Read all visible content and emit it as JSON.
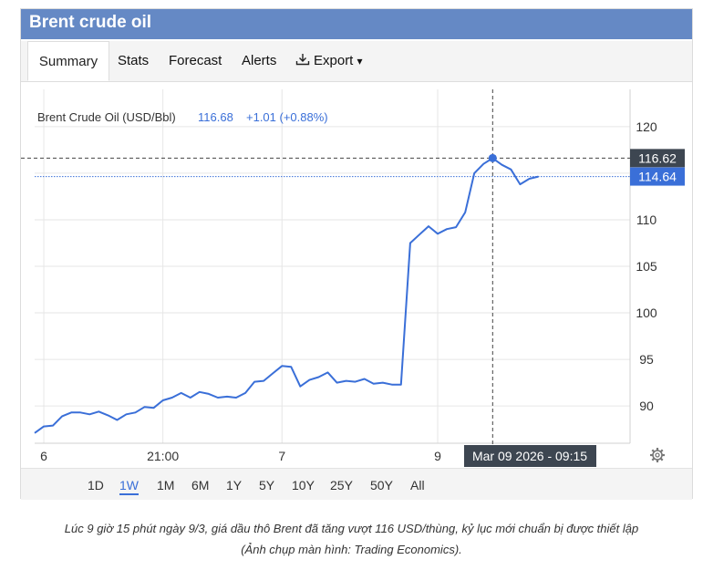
{
  "header": {
    "title": "Brent crude oil"
  },
  "tabs": {
    "summary": "Summary",
    "stats": "Stats",
    "forecast": "Forecast",
    "alerts": "Alerts",
    "export": "Export",
    "export_caret": "▾"
  },
  "legend": {
    "series_name": "Brent Crude Oil (USD/Bbl)",
    "value": "116.68",
    "change": "+1.01 (+0.88%)"
  },
  "crosshair": {
    "x_label": "Mar 09 2026 - 09:15",
    "y_label": "116.62"
  },
  "last_price": {
    "label": "114.64",
    "value": 114.64
  },
  "settings_icon": "gear-icon",
  "range_buttons": [
    "1D",
    "1W",
    "1M",
    "6M",
    "1Y",
    "5Y",
    "10Y",
    "25Y",
    "50Y",
    "All"
  ],
  "range_active": "1W",
  "caption": {
    "line1": "Lúc 9 giờ 15 phút ngày 9/3, giá dầu thô Brent đã tăng vượt 116 USD/thùng, kỷ lục mới chuẩn bị được thiết lập",
    "line2": "(Ảnh chụp màn hình: Trading Economics)."
  },
  "colors": {
    "line": "#3a6fd8",
    "header": "#6589c5",
    "crosshair_label": "#3d4651"
  },
  "chart_data": {
    "type": "line",
    "title": "Brent Crude Oil (USD/Bbl)",
    "xlabel": "",
    "ylabel": "",
    "ylim": [
      86,
      124
    ],
    "y_ticks": [
      90,
      95,
      100,
      105,
      110,
      115,
      120
    ],
    "y_tick_labels": [
      "90",
      "95",
      "100",
      "105",
      "110",
      "",
      "120"
    ],
    "x_tick_labels": [
      {
        "label": "6",
        "x": 1
      },
      {
        "label": "21:00",
        "x": 14
      },
      {
        "label": "7",
        "x": 27
      },
      {
        "label": "9",
        "x": 44
      }
    ],
    "xlim": [
      0,
      65
    ],
    "grid": true,
    "series": [
      {
        "name": "Brent Crude Oil (USD/Bbl)",
        "x": [
          0,
          1,
          2,
          3,
          4,
          5,
          6,
          7,
          8,
          9,
          10,
          11,
          12,
          13,
          14,
          15,
          16,
          17,
          18,
          19,
          20,
          21,
          22,
          23,
          24,
          25,
          26,
          27,
          28,
          29,
          30,
          31,
          32,
          33,
          34,
          35,
          36,
          37,
          38,
          39,
          40,
          41,
          42,
          43,
          44,
          45,
          46,
          47,
          48,
          49,
          50,
          51,
          52,
          53,
          54,
          55,
          56,
          57,
          58
        ],
        "y": [
          87.1,
          87.8,
          87.9,
          88.9,
          89.3,
          89.3,
          89.1,
          89.4,
          89.0,
          88.5,
          89.1,
          89.3,
          89.9,
          89.8,
          90.6,
          90.9,
          91.4,
          90.9,
          91.5,
          91.3,
          90.9,
          91.0,
          90.9,
          91.4,
          92.6,
          92.7,
          93.5,
          94.3,
          94.2,
          92.1,
          92.8,
          93.1,
          93.6,
          92.5,
          92.7,
          92.6,
          92.9,
          92.4,
          92.5,
          92.3,
          92.3,
          107.5,
          108.4,
          109.3,
          108.5,
          109.0,
          109.2,
          110.8,
          115.0,
          116.0,
          116.62,
          115.9,
          115.4,
          113.8,
          114.4,
          114.64,
          114.64,
          114.64,
          114.64
        ]
      }
    ],
    "crosshair_x": 50,
    "crosshair_y": 116.62
  }
}
